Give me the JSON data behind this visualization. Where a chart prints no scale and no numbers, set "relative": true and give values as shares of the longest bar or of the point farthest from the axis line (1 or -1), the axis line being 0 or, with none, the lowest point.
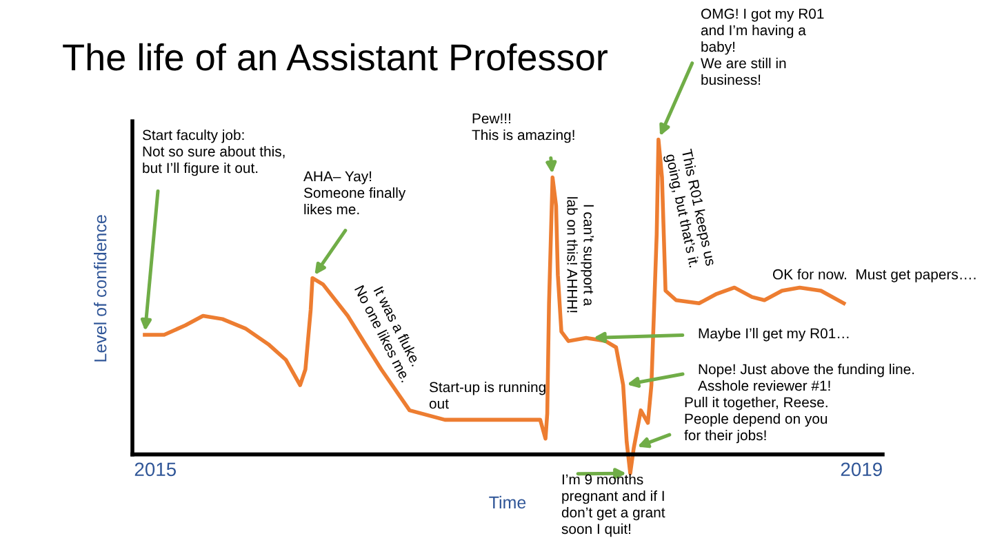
{
  "chart_data": {
    "type": "line",
    "title": "The life of an Assistant Professor",
    "xlabel": "Time",
    "ylabel": "Level of confidence",
    "relative": true,
    "tick_labels": "x",
    "grid": false,
    "legend": false,
    "marker": "none",
    "line_style": "solid",
    "xlim": [
      2014.87,
      2019.12
    ],
    "xticks": [
      2015,
      2019
    ],
    "x": [
      2014.94,
      2015.05,
      2015.17,
      2015.27,
      2015.38,
      2015.51,
      2015.64,
      2015.74,
      2015.82,
      2015.85,
      2015.88,
      2015.89,
      2015.95,
      2016.09,
      2016.19,
      2016.28,
      2016.44,
      2016.64,
      2016.93,
      2017.18,
      2017.21,
      2017.22,
      2017.23,
      2017.25,
      2017.27,
      2017.28,
      2017.3,
      2017.34,
      2017.44,
      2017.55,
      2017.61,
      2017.65,
      2017.67,
      2017.69,
      2017.71,
      2017.75,
      2017.79,
      2017.81,
      2017.84,
      2017.85,
      2017.87,
      2017.89,
      2017.95,
      2018.08,
      2018.18,
      2018.28,
      2018.38,
      2018.45,
      2018.55,
      2018.65,
      2018.77,
      2018.9
    ],
    "series": [
      {
        "color": "#ed7d31",
        "values": [
          0.38,
          0.38,
          0.41,
          0.44,
          0.43,
          0.4,
          0.35,
          0.3,
          0.22,
          0.27,
          0.46,
          0.56,
          0.54,
          0.44,
          0.35,
          0.27,
          0.14,
          0.11,
          0.11,
          0.11,
          0.05,
          0.13,
          0.48,
          0.88,
          0.79,
          0.57,
          0.39,
          0.36,
          0.37,
          0.36,
          0.34,
          0.22,
          0.04,
          -0.06,
          0.02,
          0.14,
          0.1,
          0.22,
          0.7,
          1.0,
          0.88,
          0.52,
          0.49,
          0.48,
          0.51,
          0.53,
          0.5,
          0.49,
          0.52,
          0.53,
          0.52,
          0.48
        ]
      }
    ],
    "annotations": [
      {
        "text": "Start faculty job:\nNot so sure about this,\nbut I’ll figure it out.",
        "x": 2014.94,
        "y": 0.38
      },
      {
        "text": "AHA– Yay!\nSomeone finally\nlikes me.",
        "x": 2015.89,
        "y": 0.56
      },
      {
        "text": "Pew!!!\nThis is amazing!",
        "x": 2017.25,
        "y": 0.88
      },
      {
        "text": "OMG! I got my R01\nand I’m having a\nbaby!\nWe are still in\nbusiness!",
        "x": 2017.85,
        "y": 1.0
      },
      {
        "text": "Maybe I’ll get my R01…",
        "x": 2017.46,
        "y": 0.37
      },
      {
        "text": "Nope! Just above the funding line.\nAsshole reviewer #1!",
        "x": 2017.65,
        "y": 0.22
      },
      {
        "text": "Pull it together, Reese.\nPeople depend on you\nfor their jobs!",
        "x": 2017.71,
        "y": 0.02
      },
      {
        "text": "I’m 9 months\npregnant and if I\ndon’t get a grant\nsoon I quit!",
        "x": 2017.69,
        "y": -0.06
      },
      "It was a fluke.\nNo one likes me.",
      "Start-up is running\nout",
      "I can’t support a\nlab on this! AHHH!",
      "This R01 keeps us\ngoing, but that’s it.",
      "OK for now.  Must get papers…."
    ]
  }
}
